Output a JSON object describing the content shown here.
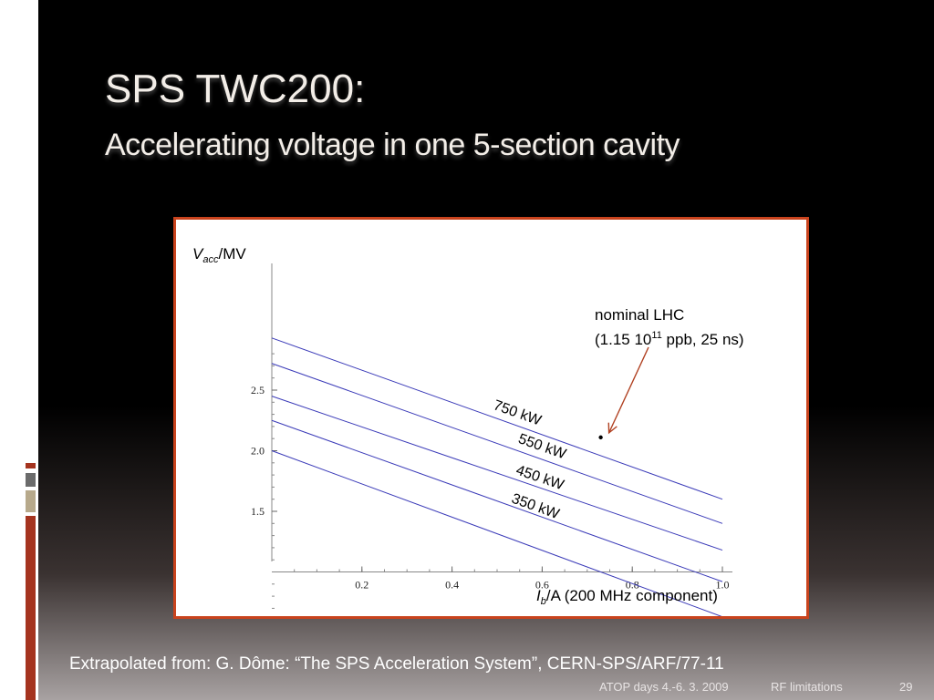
{
  "slide": {
    "title": "SPS TWC200:",
    "subtitle": "Accelerating voltage in one 5-section cavity",
    "source_note": "Extrapolated from: G. Dôme: “The SPS Acceleration System”, CERN-SPS/ARF/77-11",
    "footer_event": "ATOP days 4.-6. 3. 2009",
    "footer_topic": "RF limitations",
    "page_number": "29",
    "accent_colors": [
      "#a5341f",
      "#6b6b6b",
      "#b7a98b"
    ]
  },
  "chart_data": {
    "type": "line",
    "title": "",
    "ylabel_main": "V",
    "ylabel_sub": "acc",
    "ylabel_unit": "/MV",
    "xlabel_main": "I",
    "xlabel_sub": "b",
    "xlabel_unit": "/A (200 MHz component)",
    "xlim": [
      0,
      1.0
    ],
    "ylim": [
      1.0,
      2.9
    ],
    "x_ticks": [
      "0.2",
      "0.4",
      "0.6",
      "0.8",
      "1.0"
    ],
    "x_tick_values": [
      0.2,
      0.4,
      0.6,
      0.8,
      1.0
    ],
    "y_ticks": [
      "1.5",
      "2.0",
      "2.5"
    ],
    "y_tick_values": [
      1.5,
      2.0,
      2.5
    ],
    "series": [
      {
        "name": "750 kW",
        "x": [
          0,
          1.0
        ],
        "y": [
          2.93,
          1.6
        ]
      },
      {
        "name": "550 kW",
        "x": [
          0,
          1.0
        ],
        "y": [
          2.72,
          1.4
        ]
      },
      {
        "name": "450 kW",
        "x": [
          0,
          1.0
        ],
        "y": [
          2.45,
          1.18
        ]
      },
      {
        "name": "350 kW",
        "x": [
          0,
          1.0
        ],
        "y": [
          2.25,
          0.92
        ]
      },
      {
        "name": "",
        "x": [
          0,
          1.0
        ],
        "y": [
          2.0,
          0.63
        ]
      }
    ],
    "line_color": "#3a3ab8",
    "annotation": {
      "line1": "nominal LHC",
      "line2_prefix": "(1.15 10",
      "line2_sup": "11",
      "line2_suffix": " ppb, 25 ns)",
      "point": {
        "x": 0.73,
        "y": 2.11
      },
      "arrow_color": "#b04020"
    },
    "grid": false
  }
}
